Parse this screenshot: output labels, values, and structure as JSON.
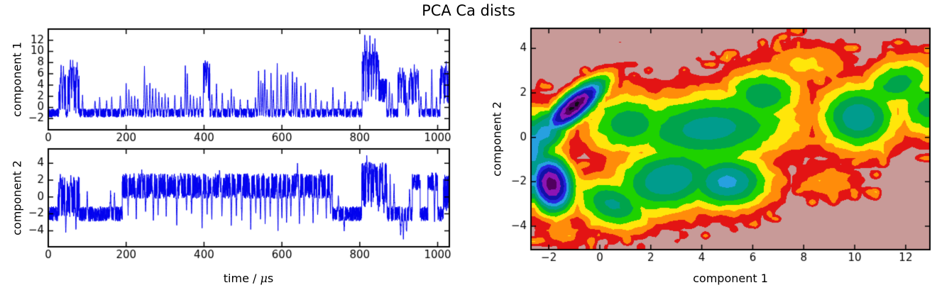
{
  "title": "PCA Ca dists",
  "chart_data": [
    {
      "id": "component1-timeseries",
      "type": "line",
      "xlabel": "",
      "ylabel": "component 1",
      "xlim": [
        0,
        1030
      ],
      "ylim": [
        -4,
        14
      ],
      "xticks": [
        0,
        200,
        400,
        600,
        800,
        1000
      ],
      "yticks": [
        -2,
        0,
        2,
        4,
        6,
        8,
        10,
        12
      ],
      "grid": false,
      "line_color": "#0000ee",
      "signal": {
        "seed": 101,
        "samples": 4200,
        "baseline": -1.0,
        "noise": 0.8,
        "spike_width": 2.2,
        "segments": [
          [
            27,
            45,
            2.6,
            3.4
          ],
          [
            50,
            80,
            3.1,
            4.3
          ],
          [
            398,
            415,
            4.4,
            3.8
          ],
          [
            806,
            850,
            5.6,
            4.6
          ],
          [
            850,
            869,
            3.1,
            2.2
          ],
          [
            898,
            918,
            3.4,
            3.0
          ],
          [
            926,
            952,
            3.4,
            3.2
          ],
          [
            1006,
            1030,
            4.0,
            3.5
          ]
        ],
        "spikes": [
          [
            33,
            7.6
          ],
          [
            39,
            7.2
          ],
          [
            57,
            8.8
          ],
          [
            63,
            8.4
          ],
          [
            74,
            8.0
          ],
          [
            88,
            2.2
          ],
          [
            120,
            1.4
          ],
          [
            132,
            1.8
          ],
          [
            150,
            1.2
          ],
          [
            163,
            2.0
          ],
          [
            185,
            2.3
          ],
          [
            200,
            4.4
          ],
          [
            207,
            3.3
          ],
          [
            214,
            2.4
          ],
          [
            222,
            2.0
          ],
          [
            230,
            1.6
          ],
          [
            247,
            7.5
          ],
          [
            253,
            4.2
          ],
          [
            261,
            4.6
          ],
          [
            268,
            3.3
          ],
          [
            276,
            3.6
          ],
          [
            284,
            2.6
          ],
          [
            292,
            2.0
          ],
          [
            300,
            2.3
          ],
          [
            308,
            1.7
          ],
          [
            325,
            2.2
          ],
          [
            341,
            1.8
          ],
          [
            352,
            7.9
          ],
          [
            357,
            6.5
          ],
          [
            365,
            2.2
          ],
          [
            373,
            1.9
          ],
          [
            382,
            1.5
          ],
          [
            390,
            2.0
          ],
          [
            403,
            8.6
          ],
          [
            409,
            8.3
          ],
          [
            420,
            2.6
          ],
          [
            432,
            4.2
          ],
          [
            447,
            2.8
          ],
          [
            462,
            1.4
          ],
          [
            470,
            3.7
          ],
          [
            477,
            2.0
          ],
          [
            493,
            1.4
          ],
          [
            512,
            1.5
          ],
          [
            532,
            1.6
          ],
          [
            540,
            6.5
          ],
          [
            546,
            5.0
          ],
          [
            551,
            4.2
          ],
          [
            556,
            6.9
          ],
          [
            562,
            3.4
          ],
          [
            572,
            6.2
          ],
          [
            578,
            3.0
          ],
          [
            588,
            8.1
          ],
          [
            598,
            6.1
          ],
          [
            610,
            5.9
          ],
          [
            615,
            6.1
          ],
          [
            627,
            6.7
          ],
          [
            633,
            4.4
          ],
          [
            638,
            5.6
          ],
          [
            649,
            4.1
          ],
          [
            660,
            4.3
          ],
          [
            673,
            2.6
          ],
          [
            687,
            3.3
          ],
          [
            701,
            1.5
          ],
          [
            716,
            1.2
          ],
          [
            731,
            3.6
          ],
          [
            746,
            1.6
          ],
          [
            762,
            2.8
          ],
          [
            778,
            1.2
          ],
          [
            794,
            1.4
          ],
          [
            813,
            13.3
          ],
          [
            818,
            12.2
          ],
          [
            826,
            12.9
          ],
          [
            833,
            11.3
          ],
          [
            839,
            12.3
          ],
          [
            846,
            9.5
          ],
          [
            876,
            4.3
          ],
          [
            883,
            2.6
          ],
          [
            903,
            6.9
          ],
          [
            910,
            7.3
          ],
          [
            921,
            2.6
          ],
          [
            931,
            7.0
          ],
          [
            940,
            7.7
          ],
          [
            947,
            6.8
          ],
          [
            957,
            2.2
          ],
          [
            970,
            2.6
          ],
          [
            985,
            7.1
          ],
          [
            997,
            1.8
          ],
          [
            1012,
            7.6
          ],
          [
            1022,
            8.2
          ],
          [
            1029,
            7.9
          ]
        ]
      }
    },
    {
      "id": "component2-timeseries",
      "type": "line",
      "xlabel": "time / μs",
      "xlabel_parts": {
        "prefix": "time / ",
        "mu": "μ",
        "suffix": "s"
      },
      "ylabel": "component 2",
      "xlim": [
        0,
        1030
      ],
      "ylim": [
        -5.9,
        5.7
      ],
      "xticks": [
        0,
        200,
        400,
        600,
        800,
        1000
      ],
      "yticks": [
        -4,
        -2,
        0,
        2,
        4
      ],
      "grid": false,
      "line_color": "#0000ee",
      "signal": {
        "seed": 202,
        "samples": 4200,
        "baseline": -2.0,
        "noise": 0.9,
        "spike_width": 2.2,
        "segments": [
          [
            25,
            80,
            0.0,
            2.4
          ],
          [
            190,
            730,
            1.3,
            1.5
          ],
          [
            805,
            870,
            1.5,
            2.7
          ],
          [
            935,
            955,
            1.8,
            1.0
          ],
          [
            975,
            1000,
            1.8,
            1.1
          ],
          [
            1015,
            1030,
            0.5,
            2.2
          ]
        ],
        "spikes": [
          [
            31,
            2.8
          ],
          [
            45,
            -4.4
          ],
          [
            58,
            2.7
          ],
          [
            71,
            -4.2
          ],
          [
            100,
            0.5
          ],
          [
            160,
            0.8
          ],
          [
            170,
            0.6
          ],
          [
            205,
            -2.0
          ],
          [
            226,
            -2.6
          ],
          [
            240,
            3.2
          ],
          [
            250,
            -2.1
          ],
          [
            270,
            -3.1
          ],
          [
            282,
            -2.0
          ],
          [
            303,
            -2.3
          ],
          [
            330,
            -3.4
          ],
          [
            340,
            3.0
          ],
          [
            355,
            -1.6
          ],
          [
            368,
            -2.1
          ],
          [
            395,
            -3.7
          ],
          [
            408,
            -2.0
          ],
          [
            420,
            -2.6
          ],
          [
            440,
            3.3
          ],
          [
            446,
            -2.3
          ],
          [
            470,
            -3.4
          ],
          [
            483,
            -2.2
          ],
          [
            497,
            -2.7
          ],
          [
            520,
            -3.8
          ],
          [
            533,
            -2.1
          ],
          [
            545,
            -2.6
          ],
          [
            557,
            -3.1
          ],
          [
            570,
            -2.4
          ],
          [
            590,
            -3.9
          ],
          [
            600,
            -2.6
          ],
          [
            612,
            -3.1
          ],
          [
            623,
            -2.2
          ],
          [
            640,
            4.0
          ],
          [
            645,
            -3.3
          ],
          [
            657,
            -2.1
          ],
          [
            680,
            -2.9
          ],
          [
            692,
            -2.2
          ],
          [
            700,
            3.2
          ],
          [
            714,
            -2.6
          ],
          [
            725,
            -2.0
          ],
          [
            745,
            0.3
          ],
          [
            760,
            -3.9
          ],
          [
            818,
            5.0
          ],
          [
            826,
            4.4
          ],
          [
            838,
            3.9
          ],
          [
            848,
            -1.5
          ],
          [
            855,
            3.3
          ],
          [
            862,
            -2.0
          ],
          [
            878,
            2.6
          ],
          [
            888,
            1.5
          ],
          [
            905,
            -4.6
          ],
          [
            912,
            -4.9
          ],
          [
            920,
            -4.3
          ],
          [
            928,
            1.0
          ],
          [
            992,
            -3.0
          ]
        ]
      }
    },
    {
      "id": "pca-density",
      "type": "heatmap",
      "style": "filled_contour",
      "xlabel": "component 1",
      "ylabel": "component 2",
      "xlim": [
        -2.7,
        12.95
      ],
      "ylim": [
        -5.05,
        4.9
      ],
      "xticks": [
        -2,
        0,
        2,
        4,
        6,
        8,
        10,
        12
      ],
      "yticks": [
        -4,
        -2,
        0,
        2,
        4
      ],
      "grid": false,
      "background_color": "#c89a98",
      "levels": {
        "thresholds": [
          0.045,
          0.09,
          0.15,
          0.22,
          0.3,
          0.38,
          0.47,
          0.56,
          0.66,
          0.78,
          0.9,
          0.99
        ],
        "colors": [
          "#c89a98",
          "#e31414",
          "#ff8c0a",
          "#ffe60a",
          "#1ed200",
          "#00a44c",
          "#009c8d",
          "#27a0e0",
          "#2525dd",
          "#1111a8",
          "#8c14b4",
          "#50005f",
          "#0c0c12"
        ]
      },
      "grid_cells": {
        "nx": 56,
        "ny": 40,
        "seed": 303
      },
      "density_blobs": [
        [
          -1.0,
          1.4,
          1.05,
          0.36,
          45,
          1.06
        ],
        [
          -2.2,
          0.2,
          0.8,
          0.6,
          60,
          0.52
        ],
        [
          -1.9,
          -2.1,
          0.55,
          0.85,
          10,
          0.98
        ],
        [
          -3.0,
          -0.5,
          0.8,
          1.15,
          0,
          0.62
        ],
        [
          2.7,
          -1.9,
          1.55,
          1.05,
          15,
          0.46
        ],
        [
          5.0,
          -2.0,
          1.15,
          0.85,
          0,
          0.5
        ],
        [
          4.3,
          0.4,
          2.4,
          1.15,
          5,
          0.42
        ],
        [
          10.15,
          0.9,
          1.1,
          1.05,
          0,
          0.45
        ],
        [
          0.5,
          -3.0,
          1.1,
          0.75,
          -25,
          0.4
        ],
        [
          1.2,
          0.6,
          1.25,
          1.0,
          0,
          0.36
        ],
        [
          6.4,
          1.9,
          1.1,
          0.85,
          0,
          0.37
        ],
        [
          11.7,
          2.4,
          1.15,
          0.75,
          25,
          0.34
        ],
        [
          12.9,
          1.3,
          0.9,
          0.9,
          0,
          0.34
        ],
        [
          8.2,
          3.3,
          1.2,
          0.7,
          0,
          0.17
        ],
        [
          9.0,
          -2.0,
          1.0,
          0.6,
          0,
          0.13
        ],
        [
          -1.5,
          -4.3,
          0.8,
          0.5,
          0,
          0.12
        ]
      ]
    }
  ]
}
